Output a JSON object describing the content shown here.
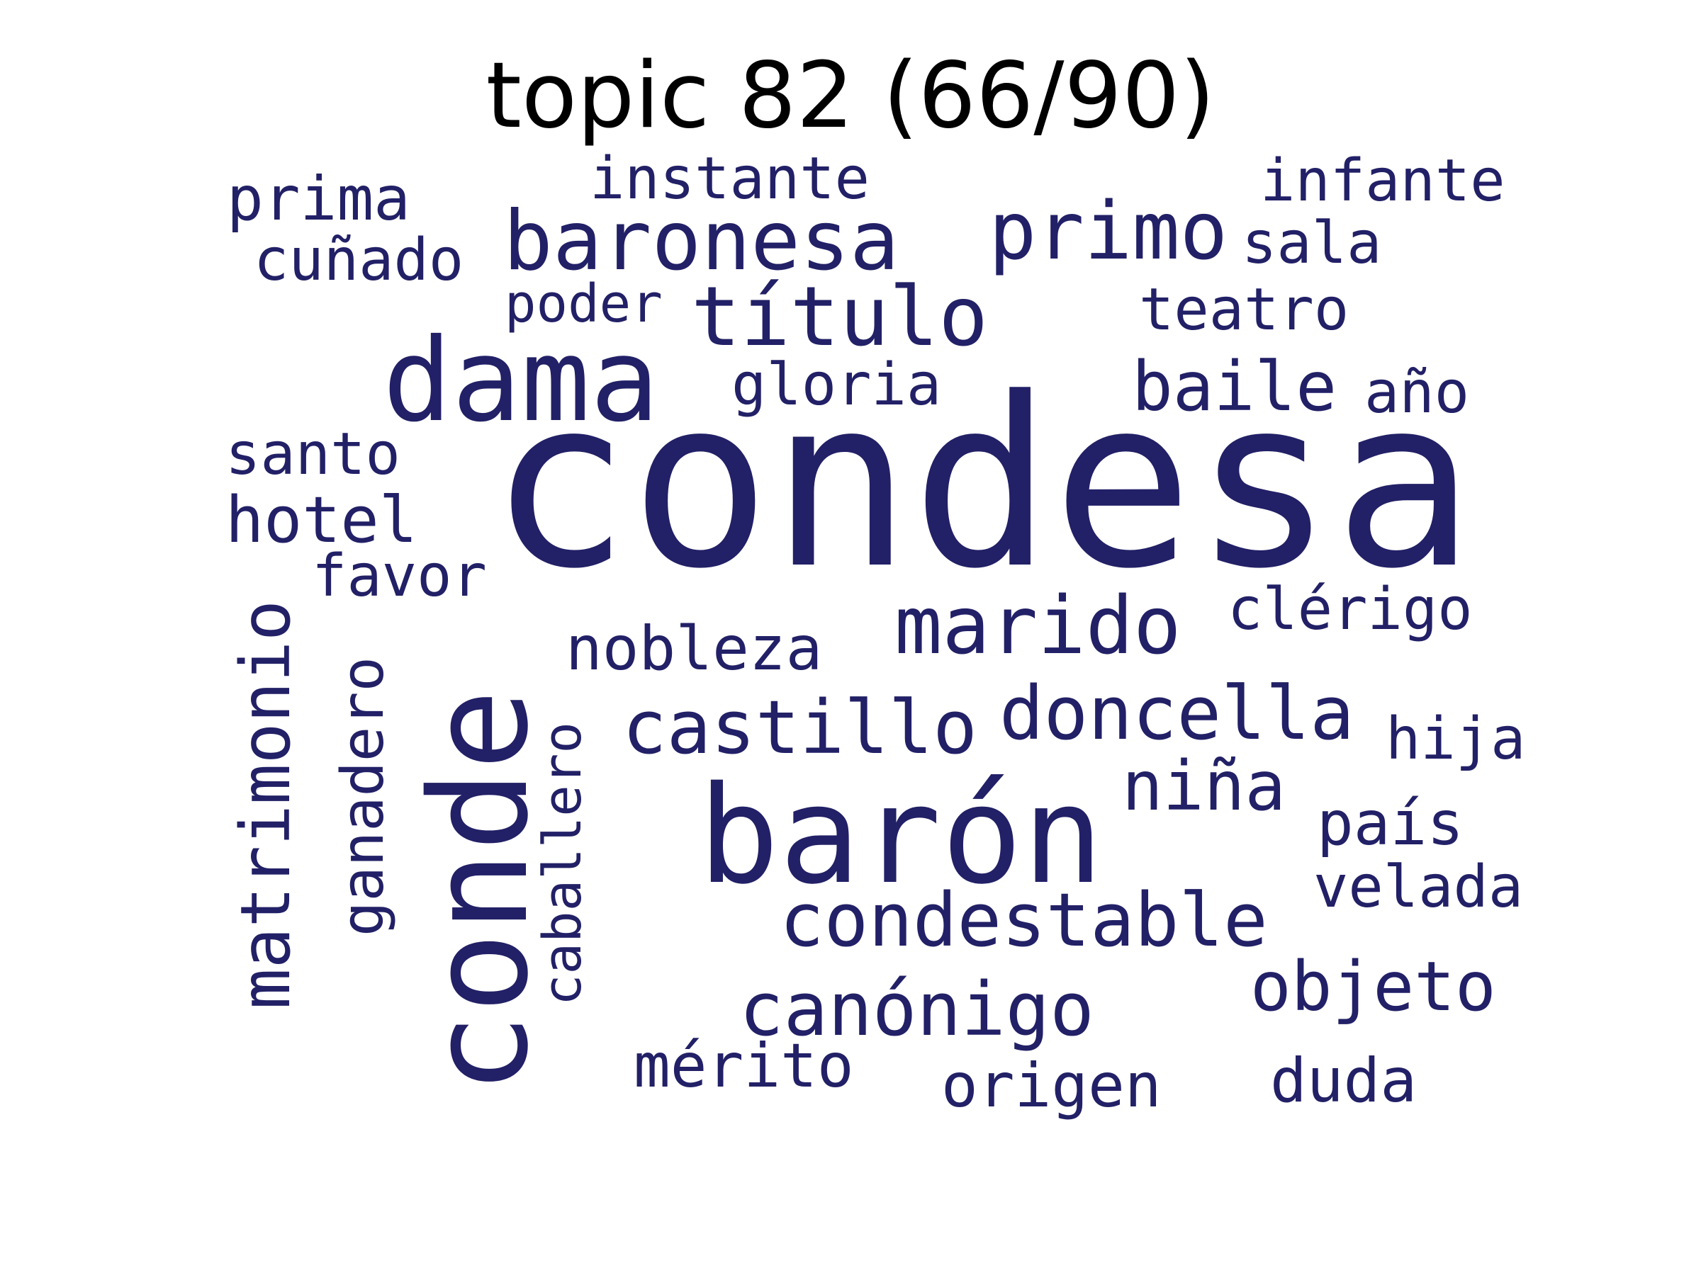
{
  "title": "topic 82 (66/90)",
  "word_color": "#222066",
  "words": {
    "condesa": "condesa",
    "conde": "conde",
    "baron": "barón",
    "dama": "dama",
    "baronesa": "baronesa",
    "titulo": "título",
    "primo": "primo",
    "marido": "marido",
    "doncella": "doncella",
    "castillo": "castillo",
    "condestable": "condestable",
    "canonigo": "canónigo",
    "matrimonio": "matrimonio",
    "baile": "baile",
    "nobleza": "nobleza",
    "nina": "niña",
    "objeto": "objeto",
    "merito": "mérito",
    "origen": "origen",
    "duda": "duda",
    "instante": "instante",
    "infante": "infante",
    "prima": "prima",
    "cunado": "cuñado",
    "sala": "sala",
    "poder": "poder",
    "teatro": "teatro",
    "gloria": "gloria",
    "ano": "año",
    "santo": "santo",
    "hotel": "hotel",
    "favor": "favor",
    "clerigo": "clérigo",
    "ganadero": "ganadero",
    "caballero": "caballero",
    "hija": "hija",
    "pais": "país",
    "velada": "velada"
  }
}
